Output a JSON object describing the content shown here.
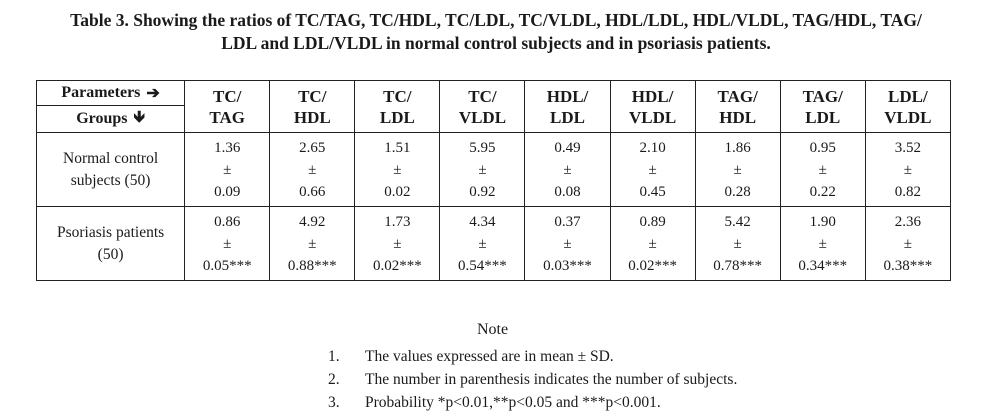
{
  "caption": {
    "line1": "Table 3. Showing the ratios of TC/TAG, TC/HDL, TC/LDL, TC/VLDL, HDL/LDL, HDL/VLDL, TAG/HDL, TAG/",
    "line2": "LDL and LDL/VLDL in normal control subjects and in psoriasis patients."
  },
  "table": {
    "parameters_label": "Parameters",
    "parameters_arrow": "➔",
    "groups_label": "Groups",
    "groups_arrow": "🡻",
    "columns": [
      {
        "top": "TC/",
        "bottom": "TAG"
      },
      {
        "top": "TC/",
        "bottom": "HDL"
      },
      {
        "top": "TC/",
        "bottom": "LDL"
      },
      {
        "top": "TC/",
        "bottom": "VLDL"
      },
      {
        "top": "HDL/",
        "bottom": "LDL"
      },
      {
        "top": "HDL/",
        "bottom": "VLDL"
      },
      {
        "top": "TAG/",
        "bottom": "HDL"
      },
      {
        "top": "TAG/",
        "bottom": "LDL"
      },
      {
        "top": "LDL/",
        "bottom": "VLDL"
      }
    ],
    "rows": [
      {
        "group_line1": "Normal control",
        "group_line2": "subjects (50)",
        "cells": [
          {
            "mean": "1.36",
            "pm": "±",
            "sd": "0.09"
          },
          {
            "mean": "2.65",
            "pm": "±",
            "sd": "0.66"
          },
          {
            "mean": "1.51",
            "pm": "±",
            "sd": "0.02"
          },
          {
            "mean": "5.95",
            "pm": "±",
            "sd": "0.92"
          },
          {
            "mean": "0.49",
            "pm": "±",
            "sd": "0.08"
          },
          {
            "mean": "2.10",
            "pm": "±",
            "sd": "0.45"
          },
          {
            "mean": "1.86",
            "pm": "±",
            "sd": "0.28"
          },
          {
            "mean": "0.95",
            "pm": "±",
            "sd": "0.22"
          },
          {
            "mean": "3.52",
            "pm": "±",
            "sd": "0.82"
          }
        ]
      },
      {
        "group_line1": "Psoriasis patients",
        "group_line2": "(50)",
        "cells": [
          {
            "mean": "0.86",
            "pm": "±",
            "sd": "0.05***"
          },
          {
            "mean": "4.92",
            "pm": "±",
            "sd": "0.88***"
          },
          {
            "mean": "1.73",
            "pm": "±",
            "sd": "0.02***"
          },
          {
            "mean": "4.34",
            "pm": "±",
            "sd": "0.54***"
          },
          {
            "mean": "0.37",
            "pm": "±",
            "sd": "0.03***"
          },
          {
            "mean": "0.89",
            "pm": "±",
            "sd": "0.02***"
          },
          {
            "mean": "5.42",
            "pm": "±",
            "sd": "0.78***"
          },
          {
            "mean": "1.90",
            "pm": "±",
            "sd": "0.34***"
          },
          {
            "mean": "2.36",
            "pm": "±",
            "sd": "0.38***"
          }
        ]
      }
    ]
  },
  "note": {
    "title": "Note",
    "items": [
      {
        "num": "1.",
        "text": "The values expressed are in mean ± SD."
      },
      {
        "num": "2.",
        "text": "The number in parenthesis indicates the number of subjects."
      },
      {
        "num": "3.",
        "text": "Probability *p<0.01,**p<0.05 and ***p<0.001."
      }
    ]
  }
}
